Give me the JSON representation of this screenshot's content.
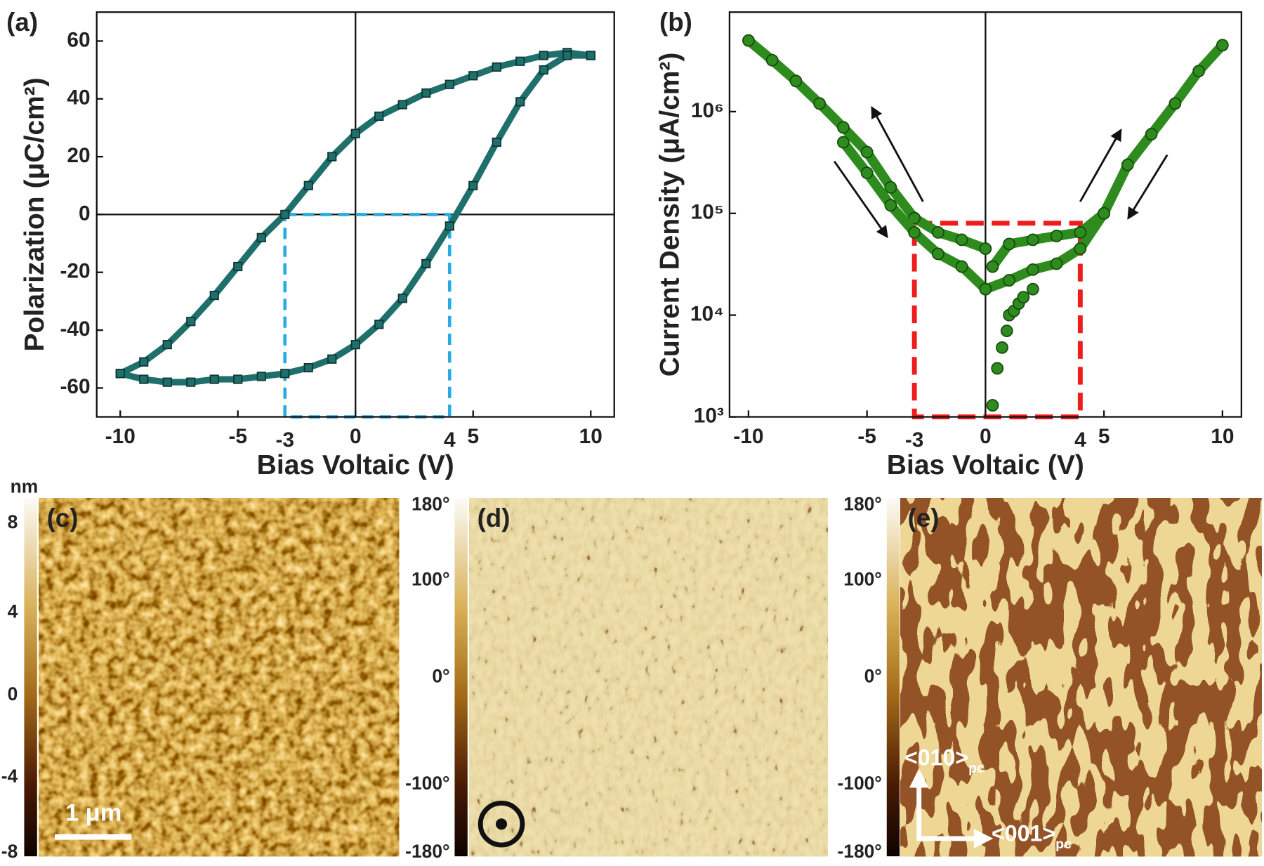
{
  "chart_data": [
    {
      "type": "scatter",
      "tag": "(a)",
      "xlabel": "Bias Voltaic (V)",
      "ylabel": "Polarization (μC/cm²)",
      "xlim": [
        -11,
        11
      ],
      "ylim": [
        -70,
        70
      ],
      "xticks": [
        -10,
        -5,
        0,
        5,
        10
      ],
      "yticks": [
        -60,
        -40,
        -20,
        0,
        20,
        40,
        60
      ],
      "zero_lines": [
        "x",
        "y"
      ],
      "marker": "square",
      "connect": true,
      "color": "#1f6f6b",
      "edge_color": "#0d3533",
      "series": [
        {
          "x": [
            10,
            9,
            8,
            7,
            6,
            5,
            4,
            3,
            2,
            1,
            0,
            -1,
            -2,
            -3,
            -4,
            -5,
            -6,
            -7,
            -8,
            -9,
            -10
          ],
          "values": [
            55,
            56,
            55,
            53,
            51,
            48,
            45,
            42,
            38,
            34,
            28,
            20,
            10,
            0,
            -8,
            -18,
            -28,
            -37,
            -45,
            -51,
            -55
          ]
        },
        {
          "x": [
            -10,
            -9,
            -8,
            -7,
            -6,
            -5,
            -4,
            -3,
            -2,
            -1,
            0,
            1,
            2,
            3,
            4,
            5,
            6,
            7,
            8,
            9,
            10
          ],
          "values": [
            -55,
            -57,
            -58,
            -58,
            -57,
            -57,
            -56,
            -55,
            -53,
            -50,
            -45,
            -38,
            -29,
            -17,
            -4,
            10,
            25,
            39,
            50,
            55,
            55
          ]
        }
      ],
      "annotations": [
        {
          "text": "-3",
          "x": -3
        },
        {
          "text": "4",
          "x": 4
        }
      ],
      "box": {
        "top": 0,
        "color": "#29abe2"
      }
    },
    {
      "type": "scatter",
      "tag": "(b)",
      "xlabel": "Bias Voltaic (V)",
      "ylabel": "Current Density (μA/cm²)",
      "xlim": [
        -10.8,
        10.8
      ],
      "ylim": [
        1000,
        9500000
      ],
      "log_y": true,
      "xticks": [
        -10,
        -5,
        0,
        5,
        10
      ],
      "yticks": [
        {
          "value": 1000,
          "label": "10³"
        },
        {
          "value": 10000,
          "label": "10⁴"
        },
        {
          "value": 100000,
          "label": "10⁵"
        },
        {
          "value": 1000000,
          "label": "10⁶"
        }
      ],
      "zero_lines": [
        "x"
      ],
      "marker": "circle",
      "color": "#2e8b1e",
      "edge_color": "#164a0c",
      "series": [
        {
          "connect": true,
          "x": [
            -10,
            -9,
            -8,
            -7,
            -6,
            -5,
            -4,
            -3,
            -2,
            -1,
            0
          ],
          "values": [
            5000000,
            3200000,
            2000000,
            1200000,
            700000,
            400000,
            180000,
            90000,
            65000,
            55000,
            45000
          ]
        },
        {
          "connect": true,
          "x": [
            -6,
            -5,
            -4,
            -3,
            -2,
            -1,
            0
          ],
          "values": [
            500000,
            250000,
            120000,
            65000,
            40000,
            30000,
            18000
          ]
        },
        {
          "connect": true,
          "x": [
            0,
            1,
            2,
            3,
            4,
            5,
            6,
            7,
            8,
            9,
            10
          ],
          "values": [
            18000,
            22000,
            28000,
            32000,
            45000,
            100000,
            300000,
            600000,
            1200000,
            2500000,
            4500000
          ]
        },
        {
          "connect": true,
          "x": [
            0.3,
            1,
            2,
            3,
            4,
            5
          ],
          "values": [
            30000,
            50000,
            55000,
            60000,
            65000,
            100000
          ]
        },
        {
          "connect": false,
          "x": [
            0.3,
            0.5,
            0.7,
            0.9,
            1.0,
            1.2,
            1.4,
            1.6,
            2.0
          ],
          "values": [
            1300,
            3000,
            4800,
            7000,
            10000,
            11000,
            13000,
            15000,
            18000
          ]
        }
      ],
      "annotations": [
        {
          "text": "-3",
          "x": -3
        },
        {
          "text": "4",
          "x": 4
        }
      ],
      "box": {
        "top": 80000,
        "color": "#ee1c1c"
      }
    }
  ],
  "panels": [
    {
      "label": "(c)",
      "unit": "nm",
      "ticks": [
        "8",
        "4",
        "0",
        "-4",
        "-8"
      ],
      "scale_bar": "1 μm"
    },
    {
      "label": "(d)",
      "ticks": [
        "180°",
        "100°",
        "0°",
        "-100°",
        "-180°"
      ]
    },
    {
      "label": "(e)",
      "ticks": [
        "180°",
        "100°",
        "0°",
        "-100°",
        "-180°"
      ],
      "axes": [
        {
          "text": "<010>",
          "sub": "pc"
        },
        {
          "text": "<001>",
          "sub": "pc"
        }
      ]
    }
  ]
}
